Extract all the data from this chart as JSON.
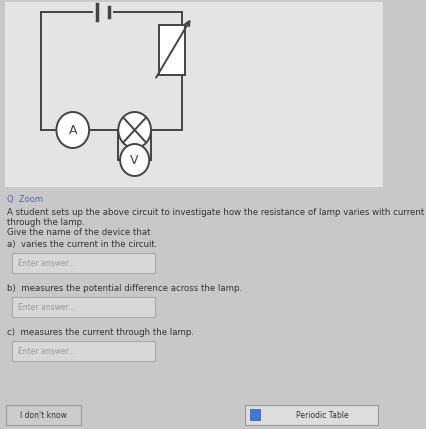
{
  "background_color": "#c8c8c8",
  "circuit_bg": "#e8e8e8",
  "title_zoom": "Q  Zoom",
  "main_text": "A student sets up the above circuit to investigate how the resistance of lamp varies with current through the lamp.",
  "instruction": "Give the name of the device that",
  "questions": [
    {
      "label": "a)",
      "text": "varies the current in the circuit.",
      "placeholder": "Enter answer..."
    },
    {
      "label": "b)",
      "text": "measures the potential difference across the lamp.",
      "placeholder": "Enter answer..."
    },
    {
      "label": "c)",
      "text": "measures the current through the lamp.",
      "placeholder": "Enter answer..."
    }
  ],
  "button_left": "I don't know",
  "button_right": "Periodic Table",
  "text_color": "#333333",
  "input_bg": "#d8d8d8",
  "input_border": "#aaaaaa",
  "circuit_color": "#444444",
  "zoom_color": "#5566aa",
  "white": "#ffffff"
}
